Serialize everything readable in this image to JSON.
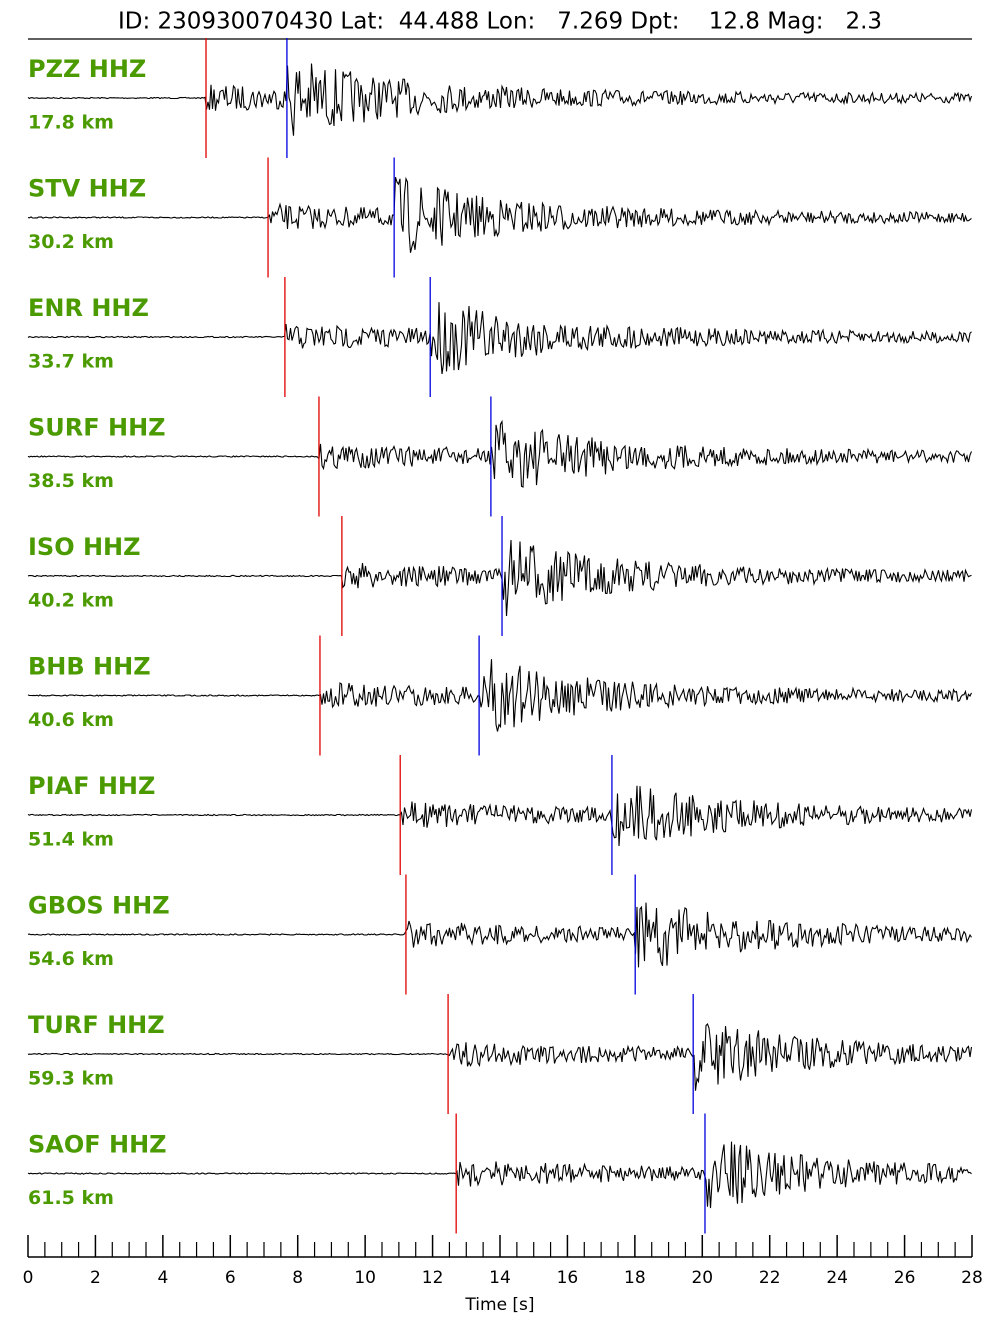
{
  "chart_data": {
    "type": "seismogram",
    "title": "ID: 230930070430 Lat:  44.488 Lon:   7.269 Dpt:    12.8 Mag:   2.3",
    "xlabel": "Time [s]",
    "xlim": [
      0,
      28
    ],
    "xticks": [
      0,
      2,
      4,
      6,
      8,
      10,
      12,
      14,
      16,
      18,
      20,
      22,
      24,
      26,
      28
    ],
    "xminorticks": [
      0.5,
      1,
      1.5,
      2.5,
      3,
      3.5,
      4.5,
      5,
      5.5,
      6.5,
      7,
      7.5,
      8.5,
      9,
      9.5,
      10.5,
      11,
      11.5,
      12.5,
      13,
      13.5,
      14.5,
      15,
      15.5,
      16.5,
      17,
      17.5,
      18.5,
      19,
      19.5,
      20.5,
      21,
      21.5,
      22.5,
      23,
      23.5,
      24.5,
      25,
      25.5,
      26.5,
      27,
      27.5
    ],
    "label_color": "#4a9a00",
    "p_color": "#e00000",
    "s_color": "#0000e0",
    "trace_color": "#000000",
    "traces": [
      {
        "name": "PZZ HHZ",
        "distance": "17.8 km",
        "p_pick": 5.28,
        "s_pick": 7.68
      },
      {
        "name": "STV HHZ",
        "distance": "30.2 km",
        "p_pick": 7.12,
        "s_pick": 10.86
      },
      {
        "name": "ENR HHZ",
        "distance": "33.7 km",
        "p_pick": 7.62,
        "s_pick": 11.93
      },
      {
        "name": "SURF HHZ",
        "distance": "38.5 km",
        "p_pick": 8.63,
        "s_pick": 13.73
      },
      {
        "name": "ISO HHZ",
        "distance": "40.2 km",
        "p_pick": 9.31,
        "s_pick": 14.06
      },
      {
        "name": "BHB HHZ",
        "distance": "40.6 km",
        "p_pick": 8.66,
        "s_pick": 13.38
      },
      {
        "name": "PIAF HHZ",
        "distance": "51.4 km",
        "p_pick": 11.04,
        "s_pick": 17.32
      },
      {
        "name": "GBOS HHZ",
        "distance": "54.6 km",
        "p_pick": 11.21,
        "s_pick": 18.01
      },
      {
        "name": "TURF HHZ",
        "distance": "59.3 km",
        "p_pick": 12.46,
        "s_pick": 19.73
      },
      {
        "name": "SAOF HHZ",
        "distance": "61.5 km",
        "p_pick": 12.7,
        "s_pick": 20.08
      }
    ]
  }
}
